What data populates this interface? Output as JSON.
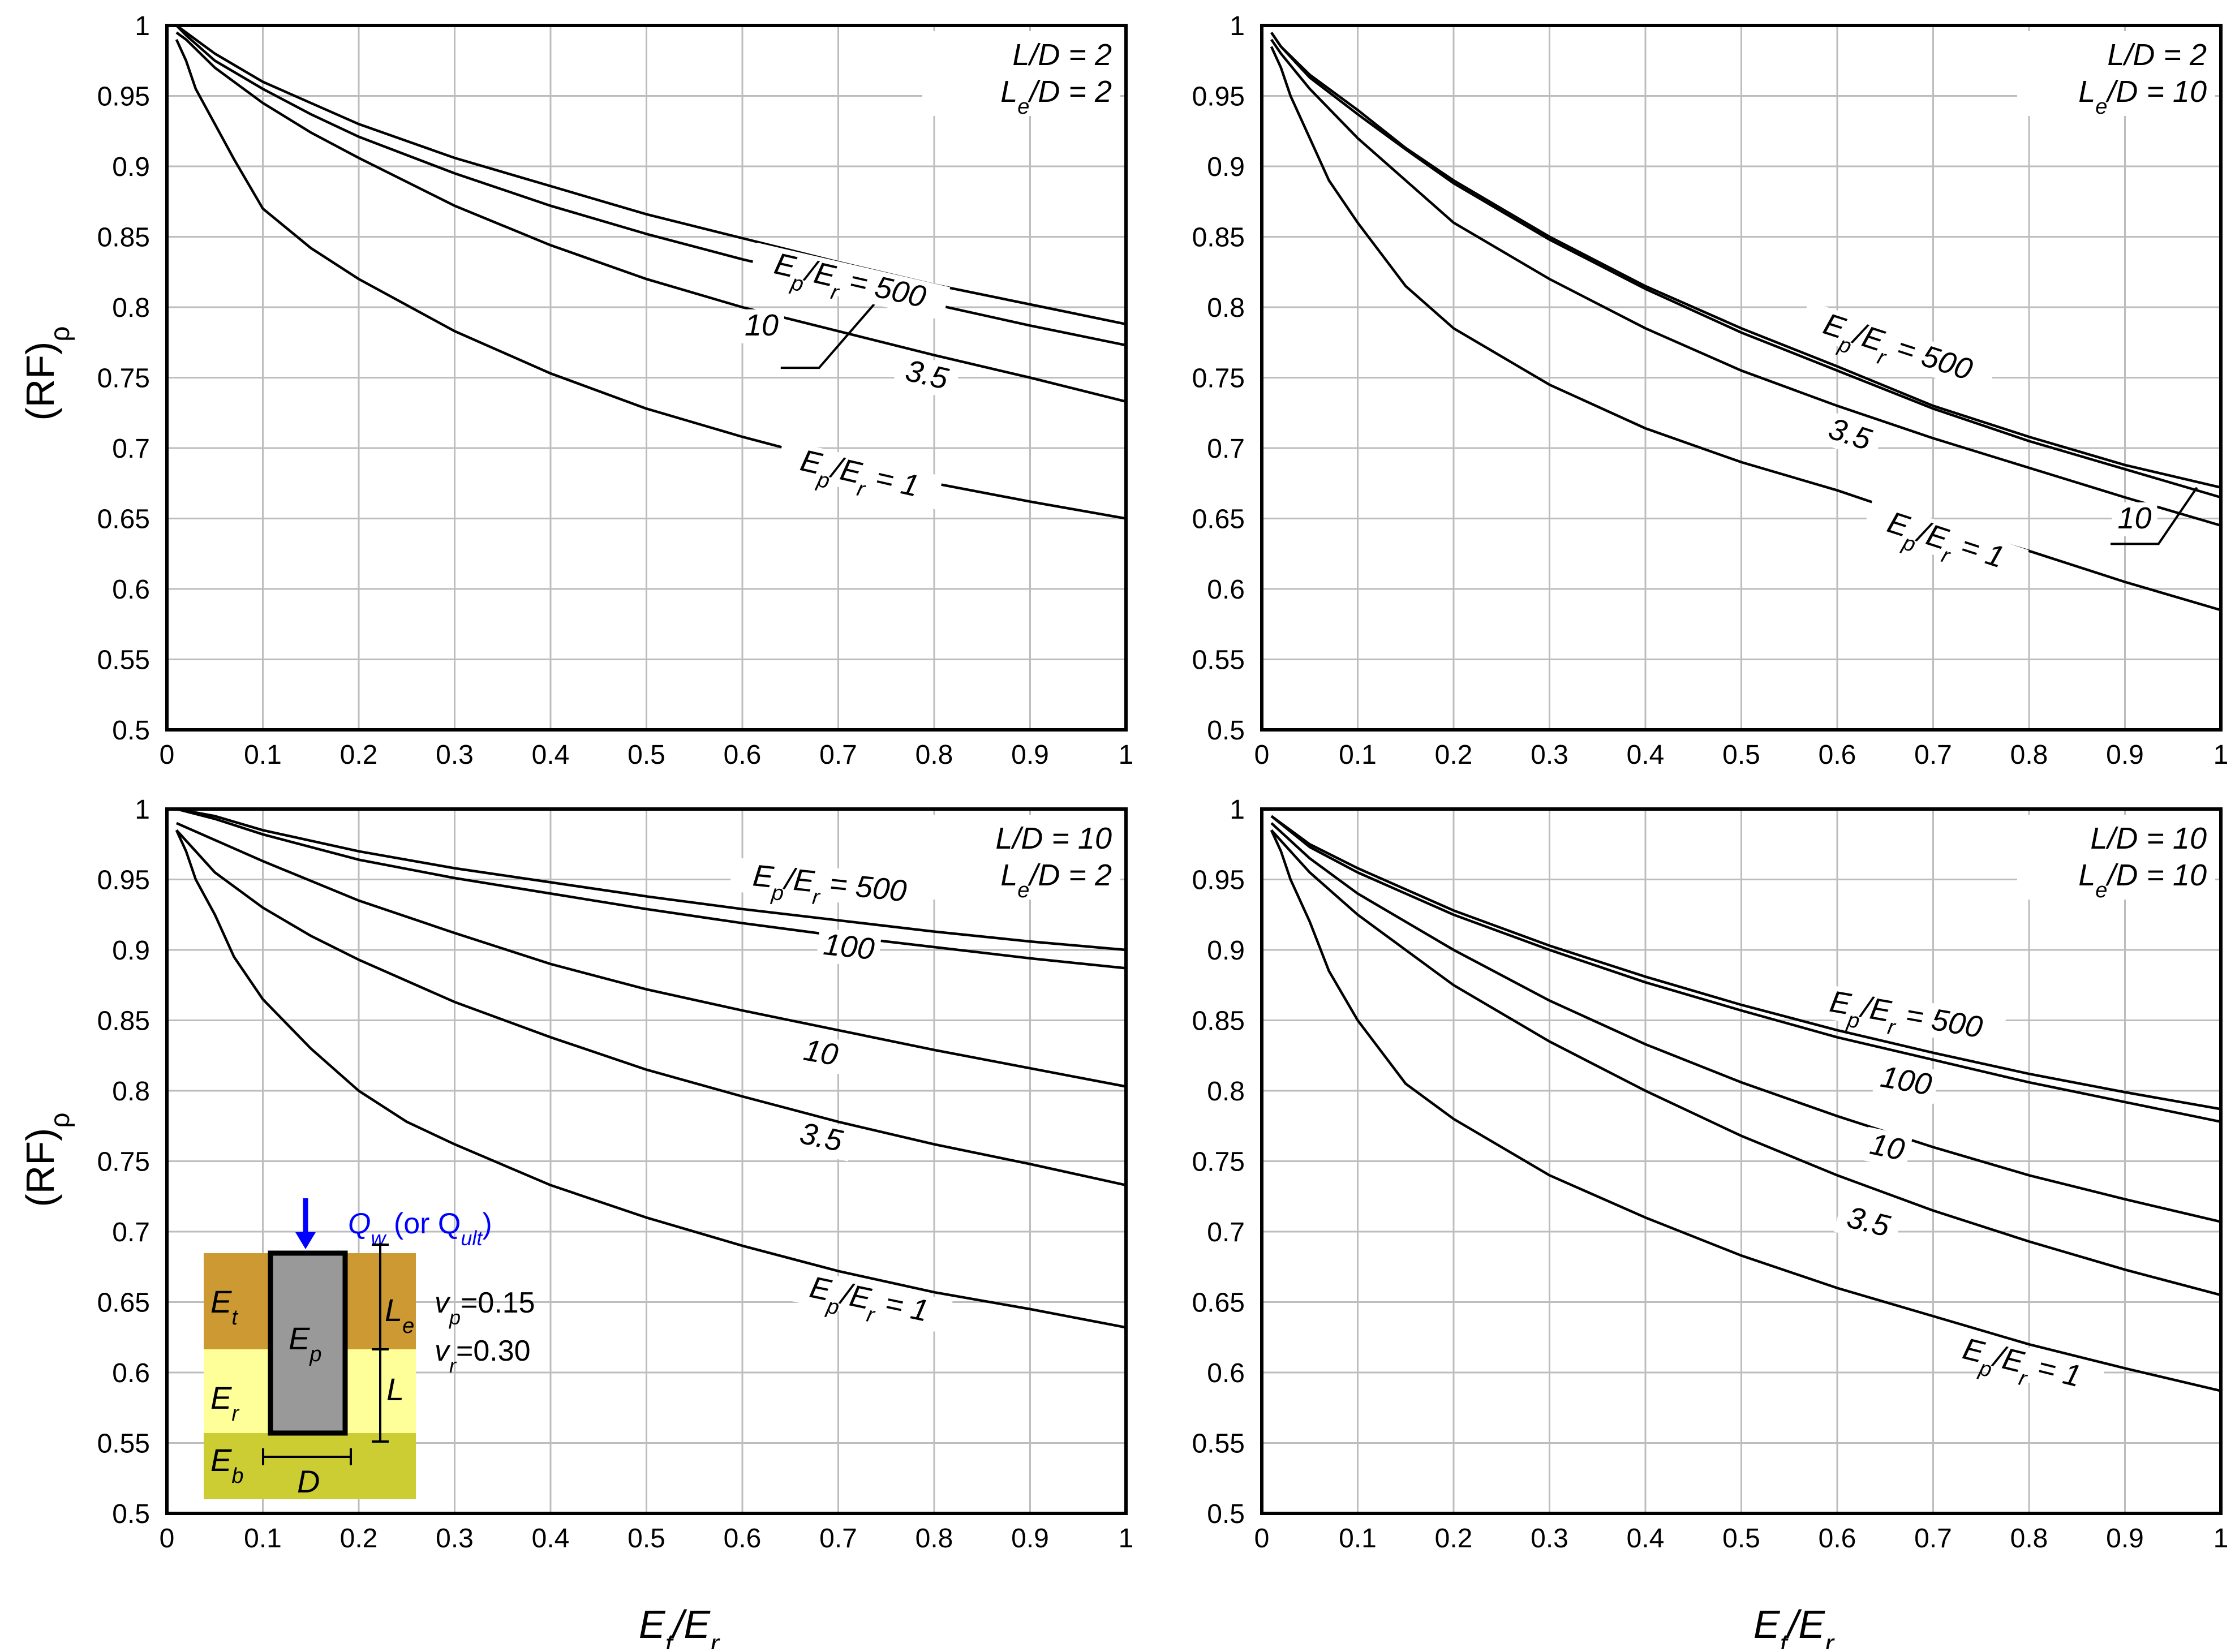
{
  "axes": {
    "x_label": {
      "main": "E",
      "sub1": "t",
      "slash": "/E",
      "sub2": "r"
    },
    "y_label": {
      "main": "(RF)",
      "sub": "ρ"
    }
  },
  "chart_data": [
    {
      "type": "line",
      "panel": "top-left",
      "annotation": [
        "L/D = 2",
        "Le/D = 2"
      ],
      "xlim": [
        0,
        1
      ],
      "ylim": [
        0.5,
        1.0
      ],
      "x_ticks": [
        0,
        0.1,
        0.2,
        0.3,
        0.4,
        0.5,
        0.6,
        0.7,
        0.8,
        0.9,
        1
      ],
      "y_ticks": [
        0.5,
        0.55,
        0.6,
        0.65,
        0.7,
        0.75,
        0.8,
        0.85,
        0.9,
        0.95,
        1
      ],
      "grid": true,
      "series": [
        {
          "name": "Ep/Er = 500",
          "x": [
            0.01,
            0.02,
            0.05,
            0.1,
            0.15,
            0.2,
            0.3,
            0.4,
            0.5,
            0.6,
            0.7,
            0.8,
            0.9,
            1.0
          ],
          "y": [
            1.0,
            0.995,
            0.98,
            0.96,
            0.945,
            0.93,
            0.906,
            0.886,
            0.866,
            0.849,
            0.832,
            0.816,
            0.802,
            0.788
          ]
        },
        {
          "name": "10",
          "x": [
            0.01,
            0.02,
            0.05,
            0.1,
            0.15,
            0.2,
            0.3,
            0.4,
            0.5,
            0.6,
            0.7,
            0.8,
            0.9,
            1.0
          ],
          "y": [
            1.0,
            0.993,
            0.975,
            0.955,
            0.937,
            0.921,
            0.895,
            0.872,
            0.852,
            0.834,
            0.818,
            0.802,
            0.787,
            0.773
          ]
        },
        {
          "name": "3.5",
          "x": [
            0.01,
            0.02,
            0.05,
            0.1,
            0.15,
            0.2,
            0.3,
            0.4,
            0.5,
            0.6,
            0.7,
            0.8,
            0.9,
            1.0
          ],
          "y": [
            0.995,
            0.99,
            0.97,
            0.945,
            0.924,
            0.906,
            0.872,
            0.844,
            0.82,
            0.8,
            0.783,
            0.766,
            0.75,
            0.733
          ]
        },
        {
          "name": "Ep/Er = 1",
          "x": [
            0.01,
            0.02,
            0.03,
            0.05,
            0.07,
            0.1,
            0.15,
            0.2,
            0.3,
            0.4,
            0.5,
            0.6,
            0.7,
            0.8,
            0.9,
            1.0
          ],
          "y": [
            0.99,
            0.975,
            0.955,
            0.93,
            0.905,
            0.87,
            0.842,
            0.82,
            0.783,
            0.753,
            0.728,
            0.708,
            0.69,
            0.675,
            0.662,
            0.65
          ]
        }
      ],
      "labels": [
        {
          "text": "Ep/Er = 500",
          "x": 0.71,
          "y": 0.812,
          "rot": 13
        },
        {
          "text": "10",
          "x": 0.62,
          "y": 0.78,
          "rot": 0
        },
        {
          "text": "3.5",
          "x": 0.79,
          "y": 0.745,
          "rot": 13
        },
        {
          "text": "Ep/Er = 1",
          "x": 0.72,
          "y": 0.675,
          "rot": 13
        }
      ],
      "leader": {
        "from": [
          0.75,
          0.812
        ],
        "to": [
          0.68,
          0.757
        ],
        "end": [
          0.64,
          0.757
        ]
      }
    },
    {
      "type": "line",
      "panel": "top-right",
      "annotation": [
        "L/D = 2",
        "Le/D = 10"
      ],
      "xlim": [
        0,
        1
      ],
      "ylim": [
        0.5,
        1.0
      ],
      "x_ticks": [
        0,
        0.1,
        0.2,
        0.3,
        0.4,
        0.5,
        0.6,
        0.7,
        0.8,
        0.9,
        1
      ],
      "y_ticks": [
        0.5,
        0.55,
        0.6,
        0.65,
        0.7,
        0.75,
        0.8,
        0.85,
        0.9,
        0.95,
        1
      ],
      "grid": true,
      "series": [
        {
          "name": "Ep/Er = 500",
          "x": [
            0.01,
            0.02,
            0.05,
            0.1,
            0.15,
            0.2,
            0.3,
            0.4,
            0.5,
            0.6,
            0.7,
            0.8,
            0.9,
            1.0
          ],
          "y": [
            0.995,
            0.985,
            0.965,
            0.94,
            0.913,
            0.89,
            0.85,
            0.815,
            0.785,
            0.758,
            0.73,
            0.708,
            0.688,
            0.672
          ]
        },
        {
          "name": "10",
          "x": [
            0.01,
            0.02,
            0.05,
            0.1,
            0.15,
            0.2,
            0.3,
            0.4,
            0.5,
            0.6,
            0.7,
            0.8,
            0.9,
            1.0
          ],
          "y": [
            0.995,
            0.985,
            0.963,
            0.937,
            0.912,
            0.888,
            0.848,
            0.813,
            0.782,
            0.755,
            0.728,
            0.705,
            0.685,
            0.665
          ]
        },
        {
          "name": "3.5",
          "x": [
            0.01,
            0.02,
            0.05,
            0.1,
            0.15,
            0.2,
            0.3,
            0.4,
            0.5,
            0.6,
            0.7,
            0.8,
            0.9,
            1.0
          ],
          "y": [
            0.99,
            0.98,
            0.955,
            0.92,
            0.89,
            0.86,
            0.82,
            0.785,
            0.755,
            0.73,
            0.707,
            0.686,
            0.665,
            0.645
          ]
        },
        {
          "name": "Ep/Er = 1",
          "x": [
            0.01,
            0.02,
            0.03,
            0.05,
            0.07,
            0.1,
            0.15,
            0.2,
            0.3,
            0.4,
            0.5,
            0.6,
            0.7,
            0.8,
            0.9,
            1.0
          ],
          "y": [
            0.985,
            0.97,
            0.95,
            0.92,
            0.89,
            0.86,
            0.815,
            0.785,
            0.745,
            0.714,
            0.69,
            0.67,
            0.647,
            0.627,
            0.605,
            0.585
          ]
        }
      ],
      "labels": [
        {
          "text": "Ep/Er = 500",
          "x": 0.66,
          "y": 0.765,
          "rot": 18
        },
        {
          "text": "3.5",
          "x": 0.61,
          "y": 0.703,
          "rot": 18
        },
        {
          "text": "10",
          "x": 0.91,
          "y": 0.643,
          "rot": 0
        },
        {
          "text": "Ep/Er = 1",
          "x": 0.71,
          "y": 0.628,
          "rot": 18
        }
      ],
      "leader": {
        "from": [
          0.975,
          0.672
        ],
        "to": [
          0.935,
          0.632
        ],
        "end": [
          0.885,
          0.632
        ]
      }
    },
    {
      "type": "line",
      "panel": "bottom-left",
      "annotation": [
        "L/D = 10",
        "Le/D = 2"
      ],
      "xlim": [
        0,
        1
      ],
      "ylim": [
        0.5,
        1.0
      ],
      "x_ticks": [
        0,
        0.1,
        0.2,
        0.3,
        0.4,
        0.5,
        0.6,
        0.7,
        0.8,
        0.9,
        1
      ],
      "y_ticks": [
        0.5,
        0.55,
        0.6,
        0.65,
        0.7,
        0.75,
        0.8,
        0.85,
        0.9,
        0.95,
        1
      ],
      "grid": true,
      "series": [
        {
          "name": "Ep/Er = 500",
          "x": [
            0.01,
            0.05,
            0.1,
            0.2,
            0.3,
            0.4,
            0.5,
            0.6,
            0.7,
            0.8,
            0.9,
            1.0
          ],
          "y": [
            1.0,
            0.995,
            0.985,
            0.97,
            0.958,
            0.948,
            0.938,
            0.929,
            0.921,
            0.913,
            0.906,
            0.9
          ]
        },
        {
          "name": "100",
          "x": [
            0.01,
            0.05,
            0.1,
            0.2,
            0.3,
            0.4,
            0.5,
            0.6,
            0.7,
            0.8,
            0.9,
            1.0
          ],
          "y": [
            1.0,
            0.993,
            0.982,
            0.964,
            0.951,
            0.94,
            0.929,
            0.919,
            0.91,
            0.902,
            0.894,
            0.887
          ]
        },
        {
          "name": "10",
          "x": [
            0.01,
            0.05,
            0.1,
            0.2,
            0.3,
            0.4,
            0.5,
            0.6,
            0.7,
            0.8,
            0.9,
            1.0
          ],
          "y": [
            0.99,
            0.978,
            0.963,
            0.935,
            0.912,
            0.89,
            0.872,
            0.857,
            0.843,
            0.829,
            0.816,
            0.803
          ]
        },
        {
          "name": "3.5",
          "x": [
            0.01,
            0.03,
            0.05,
            0.1,
            0.15,
            0.2,
            0.3,
            0.4,
            0.5,
            0.6,
            0.7,
            0.8,
            0.9,
            1.0
          ],
          "y": [
            0.985,
            0.97,
            0.955,
            0.93,
            0.91,
            0.893,
            0.863,
            0.838,
            0.815,
            0.796,
            0.778,
            0.762,
            0.748,
            0.733
          ]
        },
        {
          "name": "Ep/Er = 1",
          "x": [
            0.01,
            0.02,
            0.03,
            0.05,
            0.07,
            0.1,
            0.15,
            0.2,
            0.25,
            0.3,
            0.4,
            0.5,
            0.6,
            0.7,
            0.8,
            0.9,
            1.0
          ],
          "y": [
            0.985,
            0.97,
            0.95,
            0.925,
            0.895,
            0.865,
            0.83,
            0.8,
            0.778,
            0.762,
            0.733,
            0.71,
            0.69,
            0.672,
            0.657,
            0.645,
            0.632
          ]
        }
      ],
      "labels": [
        {
          "text": "Ep/Er = 500",
          "x": 0.69,
          "y": 0.94,
          "rot": 6
        },
        {
          "text": "100",
          "x": 0.71,
          "y": 0.895,
          "rot": 6
        },
        {
          "text": "10",
          "x": 0.68,
          "y": 0.82,
          "rot": 10
        },
        {
          "text": "3.5",
          "x": 0.68,
          "y": 0.76,
          "rot": 12
        },
        {
          "text": "Ep/Er = 1",
          "x": 0.73,
          "y": 0.645,
          "rot": 12
        }
      ],
      "inset": {
        "load_label": {
          "main": "Q",
          "sub": "w",
          "rest": " (or Q",
          "sub2": "ult",
          "close": ")"
        },
        "layer_top": {
          "main": "E",
          "sub": "t"
        },
        "layer_mid": {
          "main": "E",
          "sub": "r"
        },
        "layer_bottom": {
          "main": "E",
          "sub": "b"
        },
        "pile": {
          "main": "E",
          "sub": "p"
        },
        "embed_len": {
          "main": "L",
          "sub": "e"
        },
        "length": "L",
        "diameter": "D",
        "nu_p": {
          "main": "v",
          "sub": "p",
          "rest": "=0.15"
        },
        "nu_r": {
          "main": "v",
          "sub": "r",
          "rest": "=0.30"
        },
        "colors": {
          "top": "#cc9933",
          "mid": "#ffff99",
          "bottom": "#cccc33",
          "pile": "#999999",
          "arrow": "#0000ff"
        }
      }
    },
    {
      "type": "line",
      "panel": "bottom-right",
      "annotation": [
        "L/D = 10",
        "Le/D = 10"
      ],
      "xlim": [
        0,
        1
      ],
      "ylim": [
        0.5,
        1.0
      ],
      "x_ticks": [
        0,
        0.1,
        0.2,
        0.3,
        0.4,
        0.5,
        0.6,
        0.7,
        0.8,
        0.9,
        1
      ],
      "y_ticks": [
        0.5,
        0.55,
        0.6,
        0.65,
        0.7,
        0.75,
        0.8,
        0.85,
        0.9,
        0.95,
        1
      ],
      "grid": true,
      "series": [
        {
          "name": "Ep/Er = 500",
          "x": [
            0.01,
            0.05,
            0.1,
            0.2,
            0.3,
            0.4,
            0.5,
            0.6,
            0.7,
            0.8,
            0.9,
            1.0
          ],
          "y": [
            0.995,
            0.975,
            0.958,
            0.928,
            0.903,
            0.881,
            0.861,
            0.843,
            0.827,
            0.812,
            0.799,
            0.787
          ]
        },
        {
          "name": "100",
          "x": [
            0.01,
            0.05,
            0.1,
            0.2,
            0.3,
            0.4,
            0.5,
            0.6,
            0.7,
            0.8,
            0.9,
            1.0
          ],
          "y": [
            0.995,
            0.973,
            0.955,
            0.925,
            0.9,
            0.877,
            0.857,
            0.838,
            0.822,
            0.806,
            0.792,
            0.778
          ]
        },
        {
          "name": "10",
          "x": [
            0.01,
            0.05,
            0.1,
            0.2,
            0.3,
            0.4,
            0.5,
            0.6,
            0.7,
            0.8,
            0.9,
            1.0
          ],
          "y": [
            0.99,
            0.965,
            0.94,
            0.9,
            0.864,
            0.833,
            0.806,
            0.782,
            0.76,
            0.74,
            0.723,
            0.707
          ]
        },
        {
          "name": "3.5",
          "x": [
            0.01,
            0.05,
            0.1,
            0.2,
            0.3,
            0.4,
            0.5,
            0.6,
            0.7,
            0.8,
            0.9,
            1.0
          ],
          "y": [
            0.985,
            0.955,
            0.925,
            0.875,
            0.835,
            0.8,
            0.768,
            0.74,
            0.715,
            0.693,
            0.673,
            0.655
          ]
        },
        {
          "name": "Ep/Er = 1",
          "x": [
            0.01,
            0.02,
            0.03,
            0.05,
            0.07,
            0.1,
            0.15,
            0.2,
            0.3,
            0.4,
            0.5,
            0.6,
            0.7,
            0.8,
            0.9,
            1.0
          ],
          "y": [
            0.985,
            0.97,
            0.95,
            0.92,
            0.885,
            0.85,
            0.805,
            0.78,
            0.74,
            0.71,
            0.683,
            0.66,
            0.64,
            0.62,
            0.603,
            0.587
          ]
        }
      ],
      "labels": [
        {
          "text": "Ep/Er = 500",
          "x": 0.67,
          "y": 0.847,
          "rot": 10
        },
        {
          "text": "100",
          "x": 0.67,
          "y": 0.8,
          "rot": 10
        },
        {
          "text": "10",
          "x": 0.65,
          "y": 0.753,
          "rot": 12
        },
        {
          "text": "3.5",
          "x": 0.63,
          "y": 0.7,
          "rot": 14
        },
        {
          "text": "Ep/Er = 1",
          "x": 0.79,
          "y": 0.6,
          "rot": 14
        }
      ]
    }
  ]
}
